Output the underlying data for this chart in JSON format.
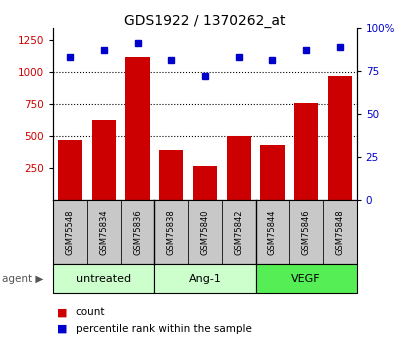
{
  "title": "GDS1922 / 1370262_at",
  "samples": [
    "GSM75548",
    "GSM75834",
    "GSM75836",
    "GSM75838",
    "GSM75840",
    "GSM75842",
    "GSM75844",
    "GSM75846",
    "GSM75848"
  ],
  "counts": [
    470,
    630,
    1120,
    390,
    265,
    505,
    435,
    760,
    970
  ],
  "percentiles": [
    83,
    87,
    91,
    81,
    72,
    83,
    81,
    87,
    89
  ],
  "bar_color": "#cc0000",
  "dot_color": "#0000cc",
  "ylim_left": [
    0,
    1350
  ],
  "ylim_right": [
    0,
    100
  ],
  "yticks_left": [
    250,
    500,
    750,
    1000,
    1250
  ],
  "yticks_right": [
    0,
    25,
    50,
    75,
    100
  ],
  "background_color": "#ffffff",
  "sample_bg_color": "#c8c8c8",
  "groups_def": [
    {
      "label": "untreated",
      "start": 0,
      "end": 3,
      "color": "#ccffcc"
    },
    {
      "label": "Ang-1",
      "start": 3,
      "end": 6,
      "color": "#ccffcc"
    },
    {
      "label": "VEGF",
      "start": 6,
      "end": 9,
      "color": "#55ee55"
    }
  ]
}
